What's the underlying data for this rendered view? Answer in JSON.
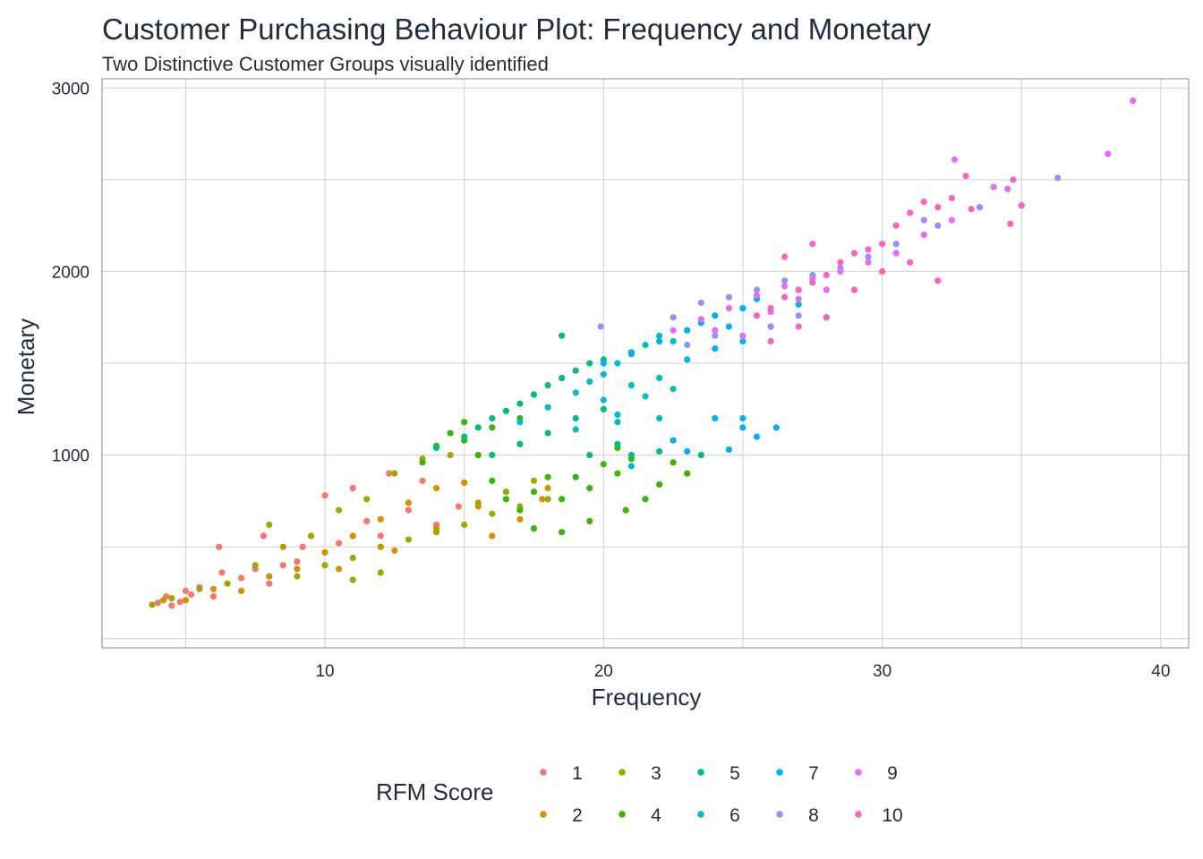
{
  "chart_data": {
    "type": "scatter",
    "title": "Customer Purchasing Behaviour Plot: Frequency and Monetary",
    "subtitle": "Two Distinctive Customer Groups visually identified",
    "xlabel": "Frequency",
    "ylabel": "Monetary",
    "xlim": [
      2,
      41
    ],
    "ylim": [
      -50,
      3050
    ],
    "x_ticks": [
      10,
      20,
      30,
      40
    ],
    "y_ticks": [
      1000,
      2000,
      3000
    ],
    "grid": true,
    "legend": {
      "title": "RFM Score",
      "position": "bottom",
      "columns": 5,
      "entries": [
        {
          "label": "1",
          "color": "#F8766D"
        },
        {
          "label": "2",
          "color": "#D89000"
        },
        {
          "label": "3",
          "color": "#A3A500"
        },
        {
          "label": "4",
          "color": "#39B600"
        },
        {
          "label": "5",
          "color": "#00BF7D"
        },
        {
          "label": "6",
          "color": "#00BFC4"
        },
        {
          "label": "7",
          "color": "#00B0F6"
        },
        {
          "label": "8",
          "color": "#9590FF"
        },
        {
          "label": "9",
          "color": "#E76BF3"
        },
        {
          "label": "10",
          "color": "#FF62BC"
        }
      ]
    },
    "series": [
      {
        "name": "1",
        "points": [
          [
            4,
            195
          ],
          [
            4.3,
            230
          ],
          [
            4.5,
            180
          ],
          [
            4.8,
            200
          ],
          [
            5,
            260
          ],
          [
            5.2,
            240
          ],
          [
            5.5,
            280
          ],
          [
            6,
            230
          ],
          [
            6.3,
            360
          ],
          [
            7,
            330
          ],
          [
            7.5,
            380
          ],
          [
            8,
            300
          ],
          [
            8.5,
            400
          ],
          [
            9,
            420
          ],
          [
            9.2,
            500
          ],
          [
            10,
            780
          ],
          [
            10.5,
            520
          ],
          [
            11,
            820
          ],
          [
            11.5,
            640
          ],
          [
            12,
            560
          ],
          [
            12.3,
            900
          ],
          [
            13,
            700
          ],
          [
            13.5,
            860
          ],
          [
            14,
            620
          ],
          [
            14.8,
            720
          ],
          [
            6.2,
            500
          ],
          [
            7.8,
            560
          ]
        ]
      },
      {
        "name": "2",
        "points": [
          [
            4.2,
            210
          ],
          [
            5,
            210
          ],
          [
            6,
            270
          ],
          [
            7,
            260
          ],
          [
            8,
            340
          ],
          [
            9,
            380
          ],
          [
            10,
            470
          ],
          [
            11,
            560
          ],
          [
            12,
            650
          ],
          [
            13,
            740
          ],
          [
            14,
            820
          ],
          [
            15,
            850
          ],
          [
            10.5,
            380
          ],
          [
            12.5,
            480
          ],
          [
            14,
            600
          ],
          [
            15.5,
            720
          ],
          [
            16,
            560
          ],
          [
            17,
            650
          ],
          [
            17.8,
            760
          ],
          [
            18,
            820
          ]
        ]
      },
      {
        "name": "3",
        "points": [
          [
            3.8,
            185
          ],
          [
            4.5,
            220
          ],
          [
            5.5,
            270
          ],
          [
            6.5,
            300
          ],
          [
            7.5,
            400
          ],
          [
            8,
            620
          ],
          [
            9,
            340
          ],
          [
            10,
            400
          ],
          [
            10.5,
            700
          ],
          [
            11,
            440
          ],
          [
            11.5,
            760
          ],
          [
            12,
            500
          ],
          [
            12.5,
            900
          ],
          [
            13,
            540
          ],
          [
            13.5,
            980
          ],
          [
            14,
            580
          ],
          [
            14.5,
            1000
          ],
          [
            15,
            620
          ],
          [
            15.5,
            740
          ],
          [
            16,
            680
          ],
          [
            16.5,
            800
          ],
          [
            17,
            720
          ],
          [
            17.5,
            860
          ],
          [
            18,
            760
          ],
          [
            9.5,
            560
          ],
          [
            8.5,
            500
          ],
          [
            12,
            360
          ],
          [
            11,
            320
          ]
        ]
      },
      {
        "name": "4",
        "points": [
          [
            13.5,
            960
          ],
          [
            14,
            1050
          ],
          [
            14.5,
            1120
          ],
          [
            15,
            1180
          ],
          [
            15.5,
            1000
          ],
          [
            16,
            860
          ],
          [
            16.5,
            760
          ],
          [
            17,
            700
          ],
          [
            17.5,
            800
          ],
          [
            18,
            880
          ],
          [
            18.5,
            760
          ],
          [
            19,
            880
          ],
          [
            19.5,
            820
          ],
          [
            20,
            950
          ],
          [
            20.5,
            900
          ],
          [
            21,
            980
          ],
          [
            21.5,
            760
          ],
          [
            22,
            840
          ],
          [
            17,
            1200
          ],
          [
            16,
            1150
          ],
          [
            15,
            1080
          ],
          [
            17.5,
            600
          ],
          [
            18.5,
            580
          ],
          [
            20.8,
            700
          ],
          [
            19.5,
            640
          ],
          [
            23,
            900
          ],
          [
            22.5,
            960
          ],
          [
            20.5,
            1040
          ]
        ]
      },
      {
        "name": "5",
        "points": [
          [
            14,
            1040
          ],
          [
            15,
            1100
          ],
          [
            15.5,
            1150
          ],
          [
            16,
            1200
          ],
          [
            16.5,
            1240
          ],
          [
            17,
            1280
          ],
          [
            17.5,
            1330
          ],
          [
            18,
            1380
          ],
          [
            18.5,
            1420
          ],
          [
            19,
            1460
          ],
          [
            19.5,
            1500
          ],
          [
            20,
            1520
          ],
          [
            16,
            1000
          ],
          [
            17,
            1060
          ],
          [
            18,
            1120
          ],
          [
            19,
            1200
          ],
          [
            20,
            1250
          ],
          [
            20.5,
            1060
          ],
          [
            21,
            1000
          ],
          [
            22,
            1020
          ],
          [
            23.5,
            1000
          ],
          [
            19.5,
            1000
          ],
          [
            18.5,
            1650
          ]
        ]
      },
      {
        "name": "6",
        "points": [
          [
            17,
            1180
          ],
          [
            18,
            1260
          ],
          [
            19,
            1340
          ],
          [
            19.5,
            1400
          ],
          [
            20,
            1440
          ],
          [
            20.5,
            1500
          ],
          [
            21,
            1560
          ],
          [
            21.5,
            1600
          ],
          [
            22,
            1650
          ],
          [
            22.5,
            1620
          ],
          [
            20,
            1300
          ],
          [
            21,
            1380
          ],
          [
            22,
            1420
          ],
          [
            20.5,
            1220
          ],
          [
            21.5,
            1320
          ],
          [
            22.5,
            1360
          ],
          [
            19,
            1140
          ],
          [
            22,
            1200
          ],
          [
            21,
            940
          ],
          [
            20.5,
            1180
          ]
        ]
      },
      {
        "name": "7",
        "points": [
          [
            20,
            1500
          ],
          [
            21,
            1550
          ],
          [
            22,
            1620
          ],
          [
            23,
            1680
          ],
          [
            23.5,
            1720
          ],
          [
            24,
            1760
          ],
          [
            24.5,
            1700
          ],
          [
            25,
            1800
          ],
          [
            25.5,
            1850
          ],
          [
            23,
            1520
          ],
          [
            24,
            1580
          ],
          [
            25,
            1620
          ],
          [
            26,
            1700
          ],
          [
            24,
            1200
          ],
          [
            25,
            1150
          ],
          [
            26.2,
            1150
          ],
          [
            25.5,
            1100
          ],
          [
            24.5,
            1030
          ],
          [
            23,
            1020
          ],
          [
            22.5,
            1080
          ],
          [
            25,
            1200
          ],
          [
            27,
            1820
          ],
          [
            28,
            1750
          ]
        ]
      },
      {
        "name": "8",
        "points": [
          [
            19.9,
            1700
          ],
          [
            22.5,
            1750
          ],
          [
            23.5,
            1830
          ],
          [
            24.5,
            1860
          ],
          [
            25.5,
            1900
          ],
          [
            26.5,
            1950
          ],
          [
            27.5,
            1980
          ],
          [
            28.5,
            2020
          ],
          [
            29.5,
            2080
          ],
          [
            30.5,
            2150
          ],
          [
            31.5,
            2280
          ],
          [
            32,
            2250
          ],
          [
            33.5,
            2350
          ],
          [
            35,
            2360
          ],
          [
            36.3,
            2510
          ],
          [
            23,
            1600
          ],
          [
            24,
            1650
          ],
          [
            26,
            1700
          ],
          [
            27,
            1760
          ]
        ]
      },
      {
        "name": "9",
        "points": [
          [
            22.5,
            1680
          ],
          [
            23.5,
            1740
          ],
          [
            24.5,
            1800
          ],
          [
            25.5,
            1870
          ],
          [
            26.5,
            1920
          ],
          [
            27.5,
            1960
          ],
          [
            28.5,
            2000
          ],
          [
            29.5,
            2050
          ],
          [
            30.5,
            2100
          ],
          [
            31.5,
            2200
          ],
          [
            32.5,
            2280
          ],
          [
            32.6,
            2610
          ],
          [
            34,
            2460
          ],
          [
            34.5,
            2450
          ],
          [
            38.1,
            2640
          ],
          [
            39,
            2930
          ],
          [
            26,
            1780
          ],
          [
            27,
            1850
          ],
          [
            28,
            1900
          ],
          [
            25,
            1650
          ],
          [
            24,
            1680
          ]
        ]
      },
      {
        "name": "10",
        "points": [
          [
            25.5,
            1760
          ],
          [
            26,
            1800
          ],
          [
            26.5,
            1860
          ],
          [
            27,
            1900
          ],
          [
            27.5,
            1940
          ],
          [
            28,
            1980
          ],
          [
            28.5,
            2050
          ],
          [
            29,
            2100
          ],
          [
            29.5,
            2120
          ],
          [
            30,
            2150
          ],
          [
            30.5,
            2250
          ],
          [
            31,
            2320
          ],
          [
            31.5,
            2380
          ],
          [
            32,
            2350
          ],
          [
            32.5,
            2400
          ],
          [
            33,
            2520
          ],
          [
            33.2,
            2340
          ],
          [
            34.7,
            2500
          ],
          [
            34.6,
            2260
          ],
          [
            35,
            2360
          ],
          [
            26.5,
            2080
          ],
          [
            27.5,
            2150
          ],
          [
            28,
            1750
          ],
          [
            29,
            1900
          ],
          [
            30,
            2000
          ],
          [
            31,
            2050
          ],
          [
            32,
            1950
          ],
          [
            26,
            1620
          ],
          [
            27,
            1700
          ]
        ]
      }
    ]
  }
}
